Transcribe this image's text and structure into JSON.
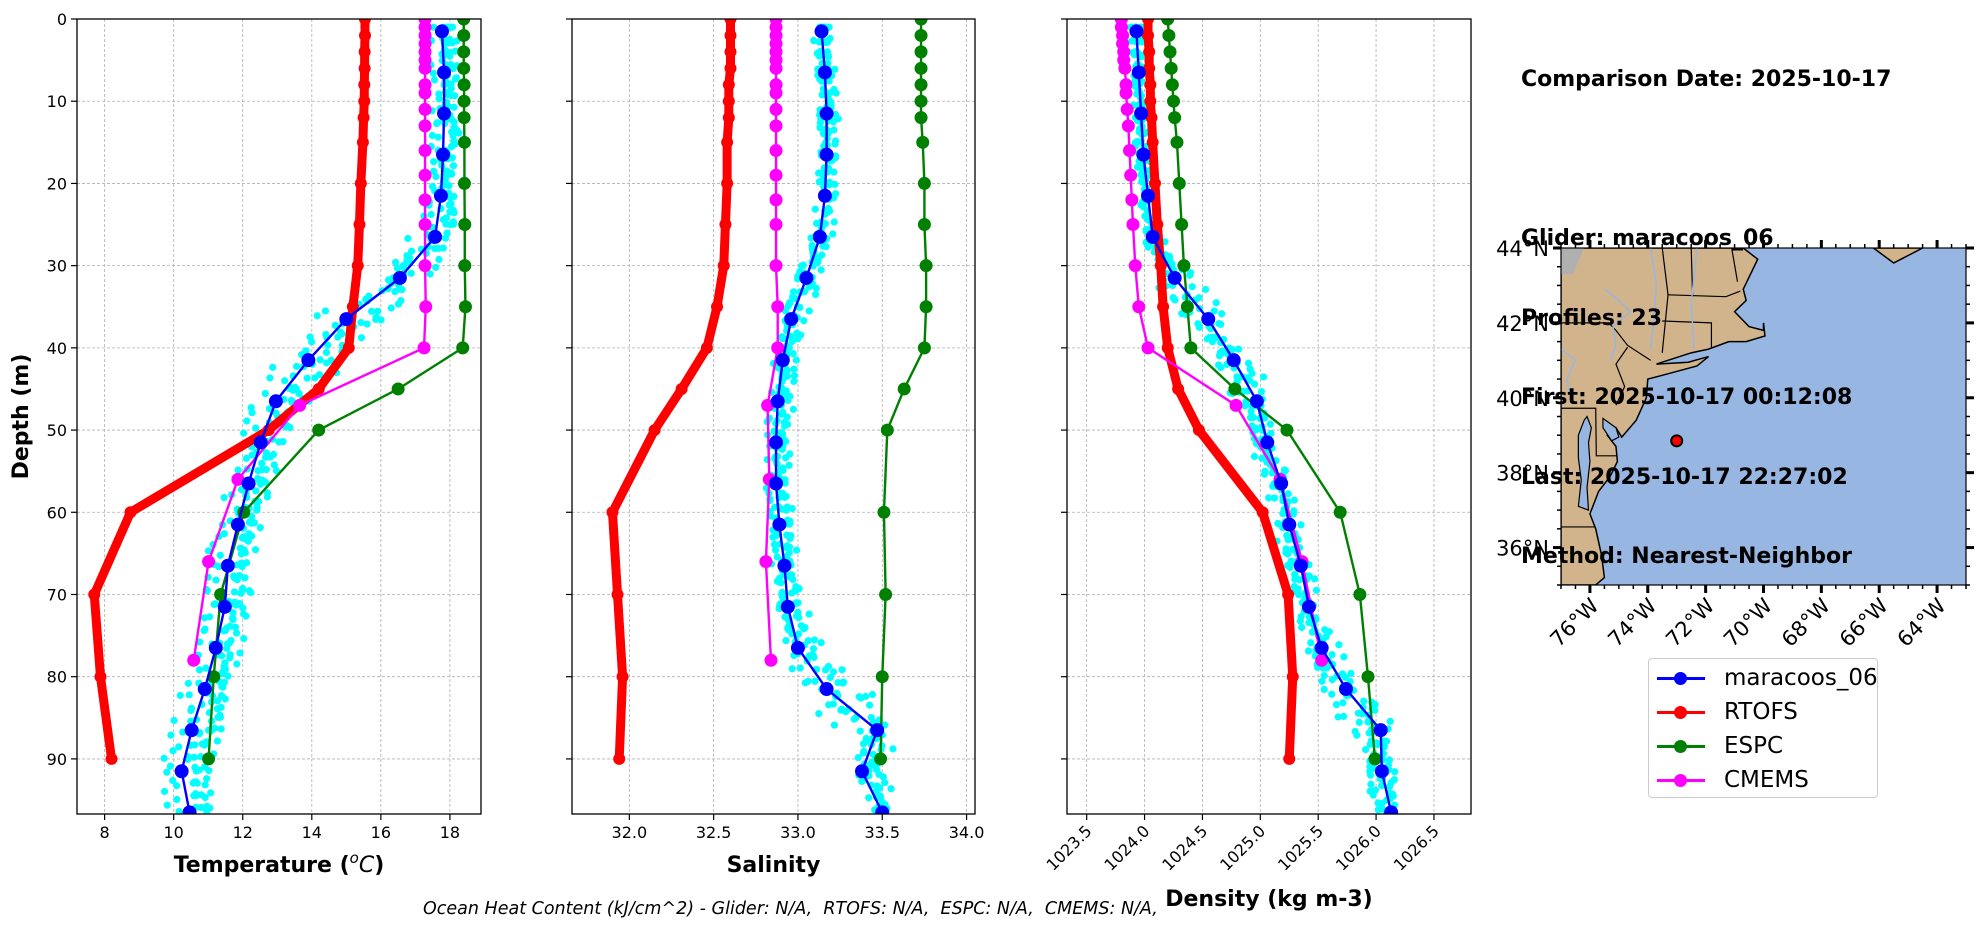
{
  "info": {
    "comparison_date": "Comparison Date: 2025-10-17",
    "glider": "Glider: maracoos_06",
    "profiles": "Profiles: 23",
    "first": "First: 2025-10-17 00:12:08",
    "last": "Last: 2025-10-17 22:27:02",
    "method": "Method: Nearest-Neighbor"
  },
  "footer": {
    "ohc_text": "Ocean Heat Content (kJ/cm^2) - Glider: N/A,  RTOFS: N/A,  ESPC: N/A,  CMEMS: N/A,"
  },
  "legend": [
    {
      "label": "maracoos_06",
      "color": "#0000ff"
    },
    {
      "label": "RTOFS",
      "color": "#ff0000"
    },
    {
      "label": "ESPC",
      "color": "#008000"
    },
    {
      "label": "CMEMS",
      "color": "#ff00ff"
    }
  ],
  "colors": {
    "glider_scatter": "#00ffff",
    "glider": "#0000ff",
    "rtofs": "#ff0000",
    "espc": "#008000",
    "cmems": "#ff00ff",
    "land": "#d2b48c",
    "ocean": "#97b6e1",
    "grid": "#b0b0b0"
  },
  "chart_data": [
    {
      "type": "line",
      "title": "",
      "xlabel": "Temperature (°C)",
      "ylabel": "Depth (m)",
      "xlim": [
        7.2,
        18.9
      ],
      "ylim": [
        96.7,
        0
      ],
      "xticks": [
        8,
        10,
        12,
        14,
        16,
        18
      ],
      "yticks": [
        0,
        10,
        20,
        30,
        40,
        50,
        60,
        70,
        80,
        90
      ],
      "grid": true,
      "series": [
        {
          "name": "RTOFS",
          "key": "rtofs",
          "depth": [
            0,
            2,
            4,
            6,
            8,
            10,
            12,
            15,
            20,
            25,
            30,
            35,
            40,
            45,
            50,
            60,
            70,
            80,
            90
          ],
          "values": [
            15.54,
            15.54,
            15.53,
            15.53,
            15.52,
            15.52,
            15.5,
            15.48,
            15.42,
            15.38,
            15.33,
            15.19,
            15.07,
            14.2,
            12.75,
            8.75,
            7.7,
            7.88,
            8.2
          ]
        },
        {
          "name": "ESPC",
          "key": "espc",
          "depth": [
            0,
            2,
            4,
            6,
            8,
            10,
            12,
            15,
            20,
            25,
            30,
            35,
            40,
            45,
            50,
            60,
            70,
            80,
            90
          ],
          "values": [
            18.4,
            18.4,
            18.4,
            18.4,
            18.41,
            18.41,
            18.41,
            18.42,
            18.42,
            18.43,
            18.43,
            18.45,
            18.37,
            16.5,
            14.2,
            12.03,
            11.36,
            11.16,
            11.01
          ]
        },
        {
          "name": "CMEMS",
          "key": "cmems",
          "depth": [
            0,
            1,
            2,
            3,
            4,
            5,
            6,
            8,
            9,
            11,
            13,
            16,
            19,
            22,
            25,
            30,
            35,
            40,
            47,
            56,
            66,
            78
          ],
          "values": [
            17.28,
            17.28,
            17.28,
            17.28,
            17.28,
            17.28,
            17.28,
            17.28,
            17.28,
            17.28,
            17.28,
            17.28,
            17.28,
            17.28,
            17.28,
            17.28,
            17.3,
            17.25,
            13.65,
            11.86,
            11.01,
            10.58
          ]
        },
        {
          "name": "maracoos_06",
          "key": "glider",
          "depth": [
            1.5,
            6.5,
            11.5,
            16.5,
            21.5,
            26.5,
            31.5,
            36.5,
            41.5,
            46.5,
            51.5,
            56.5,
            61.5,
            66.5,
            71.5,
            76.5,
            81.5,
            86.5,
            91.5,
            96.5
          ],
          "values": [
            17.77,
            17.83,
            17.83,
            17.8,
            17.74,
            17.57,
            16.55,
            15.0,
            13.9,
            12.96,
            12.52,
            12.17,
            11.86,
            11.57,
            11.48,
            11.22,
            10.9,
            10.52,
            10.23,
            10.46
          ]
        }
      ],
      "scatter_spread": {
        "description": "individual glider profile points (cyan)",
        "spread": 0.7
      }
    },
    {
      "type": "line",
      "title": "",
      "xlabel": "Salinity",
      "ylabel": "",
      "xlim": [
        31.66,
        34.05
      ],
      "ylim": [
        96.7,
        0
      ],
      "xticks": [
        32.0,
        32.5,
        33.0,
        33.5,
        34.0
      ],
      "xtick_labels": [
        "32.0",
        "32.5",
        "33.0",
        "33.5",
        "34.0"
      ],
      "grid": true,
      "series": [
        {
          "name": "RTOFS",
          "key": "rtofs",
          "depth": [
            0,
            2,
            4,
            6,
            8,
            10,
            12,
            15,
            20,
            25,
            30,
            35,
            40,
            45,
            50,
            60,
            70,
            80,
            90
          ],
          "values": [
            32.6,
            32.6,
            32.6,
            32.6,
            32.59,
            32.59,
            32.59,
            32.58,
            32.58,
            32.57,
            32.56,
            32.52,
            32.46,
            32.31,
            32.15,
            31.9,
            31.93,
            31.96,
            31.94
          ]
        },
        {
          "name": "ESPC",
          "key": "espc",
          "depth": [
            0,
            2,
            4,
            6,
            8,
            10,
            12,
            15,
            20,
            25,
            30,
            35,
            40,
            45,
            50,
            60,
            70,
            80,
            90
          ],
          "values": [
            33.73,
            33.73,
            33.73,
            33.73,
            33.73,
            33.73,
            33.73,
            33.74,
            33.75,
            33.75,
            33.76,
            33.76,
            33.75,
            33.63,
            33.53,
            33.51,
            33.52,
            33.5,
            33.49
          ]
        },
        {
          "name": "CMEMS",
          "key": "cmems",
          "depth": [
            0,
            1,
            2,
            3,
            4,
            5,
            6,
            8,
            9,
            11,
            13,
            16,
            19,
            22,
            25,
            30,
            35,
            40,
            47,
            56,
            66,
            78
          ],
          "values": [
            32.87,
            32.87,
            32.87,
            32.87,
            32.87,
            32.87,
            32.87,
            32.87,
            32.87,
            32.87,
            32.87,
            32.87,
            32.87,
            32.87,
            32.87,
            32.87,
            32.88,
            32.88,
            32.82,
            32.83,
            32.81,
            32.84
          ]
        },
        {
          "name": "maracoos_06",
          "key": "glider",
          "depth": [
            1.5,
            6.5,
            11.5,
            16.5,
            21.5,
            26.5,
            31.5,
            36.5,
            41.5,
            46.5,
            51.5,
            56.5,
            61.5,
            66.5,
            71.5,
            76.5,
            81.5,
            86.5,
            91.5,
            96.5
          ],
          "values": [
            33.14,
            33.16,
            33.17,
            33.17,
            33.16,
            33.13,
            33.05,
            32.96,
            32.91,
            32.88,
            32.87,
            32.87,
            32.89,
            32.92,
            32.94,
            33.0,
            33.17,
            33.47,
            33.38,
            33.5
          ]
        }
      ],
      "scatter_spread": {
        "description": "individual glider profile points (cyan)",
        "spread": 0.12
      }
    },
    {
      "type": "line",
      "title": "",
      "xlabel": "Density (kg m-3)",
      "ylabel": "",
      "xlim": [
        1023.33,
        1026.82
      ],
      "ylim": [
        96.7,
        0
      ],
      "xticks": [
        1023.5,
        1024.0,
        1024.5,
        1025.0,
        1025.5,
        1026.0,
        1026.5
      ],
      "xtick_labels": [
        "1023.5",
        "1024.0",
        "1024.5",
        "1025.0",
        "1025.5",
        "1026.0",
        "1026.5"
      ],
      "grid": true,
      "series": [
        {
          "name": "RTOFS",
          "key": "rtofs",
          "depth": [
            0,
            2,
            4,
            6,
            8,
            10,
            12,
            15,
            20,
            25,
            30,
            35,
            40,
            45,
            50,
            60,
            70,
            80,
            90
          ],
          "values": [
            1024.03,
            1024.03,
            1024.04,
            1024.04,
            1024.05,
            1024.05,
            1024.06,
            1024.07,
            1024.09,
            1024.11,
            1024.14,
            1024.16,
            1024.2,
            1024.29,
            1024.47,
            1025.02,
            1025.24,
            1025.28,
            1025.25
          ]
        },
        {
          "name": "ESPC",
          "key": "espc",
          "depth": [
            0,
            2,
            4,
            6,
            8,
            10,
            12,
            15,
            20,
            25,
            30,
            35,
            40,
            45,
            50,
            60,
            70,
            80,
            90
          ],
          "values": [
            1024.2,
            1024.21,
            1024.22,
            1024.23,
            1024.24,
            1024.25,
            1024.26,
            1024.28,
            1024.3,
            1024.32,
            1024.34,
            1024.37,
            1024.4,
            1024.78,
            1025.23,
            1025.69,
            1025.86,
            1025.93,
            1025.99
          ]
        },
        {
          "name": "CMEMS",
          "key": "cmems",
          "depth": [
            0,
            1,
            2,
            3,
            4,
            5,
            6,
            8,
            9,
            11,
            13,
            16,
            19,
            22,
            25,
            30,
            35,
            40,
            47,
            56,
            66,
            78
          ],
          "values": [
            1023.8,
            1023.8,
            1023.81,
            1023.81,
            1023.82,
            1023.82,
            1023.83,
            1023.84,
            1023.84,
            1023.85,
            1023.86,
            1023.87,
            1023.88,
            1023.89,
            1023.9,
            1023.92,
            1023.95,
            1024.03,
            1024.79,
            1025.17,
            1025.36,
            1025.53
          ]
        },
        {
          "name": "maracoos_06",
          "key": "glider",
          "depth": [
            1.5,
            6.5,
            11.5,
            16.5,
            21.5,
            26.5,
            31.5,
            36.5,
            41.5,
            46.5,
            51.5,
            56.5,
            61.5,
            66.5,
            71.5,
            76.5,
            81.5,
            86.5,
            91.5,
            96.5
          ],
          "values": [
            1023.93,
            1023.95,
            1023.97,
            1023.99,
            1024.03,
            1024.07,
            1024.26,
            1024.55,
            1024.77,
            1024.97,
            1025.06,
            1025.18,
            1025.25,
            1025.35,
            1025.42,
            1025.53,
            1025.74,
            1026.04,
            1026.05,
            1026.13
          ]
        }
      ],
      "scatter_spread": {
        "description": "individual glider profile points (cyan)",
        "spread": 0.12
      }
    },
    {
      "type": "scatter",
      "title": "",
      "description": "location map",
      "lon_range": [
        -77.0,
        -63.0
      ],
      "lat_range": [
        35.0,
        44.0
      ],
      "lon_ticks": [
        -76,
        -74,
        -72,
        -70,
        -68,
        -66,
        -64
      ],
      "lon_tick_labels": [
        "76°W",
        "74°W",
        "72°W",
        "70°W",
        "68°W",
        "66°W",
        "64°W"
      ],
      "lat_ticks": [
        36,
        38,
        40,
        42,
        44
      ],
      "lat_tick_labels": [
        "36°N",
        "38°N",
        "40°N",
        "42°N",
        "44°N"
      ],
      "points": [
        {
          "name": "glider_position",
          "lon": -73.0,
          "lat": 38.85,
          "color": "#ff0000"
        }
      ]
    }
  ]
}
